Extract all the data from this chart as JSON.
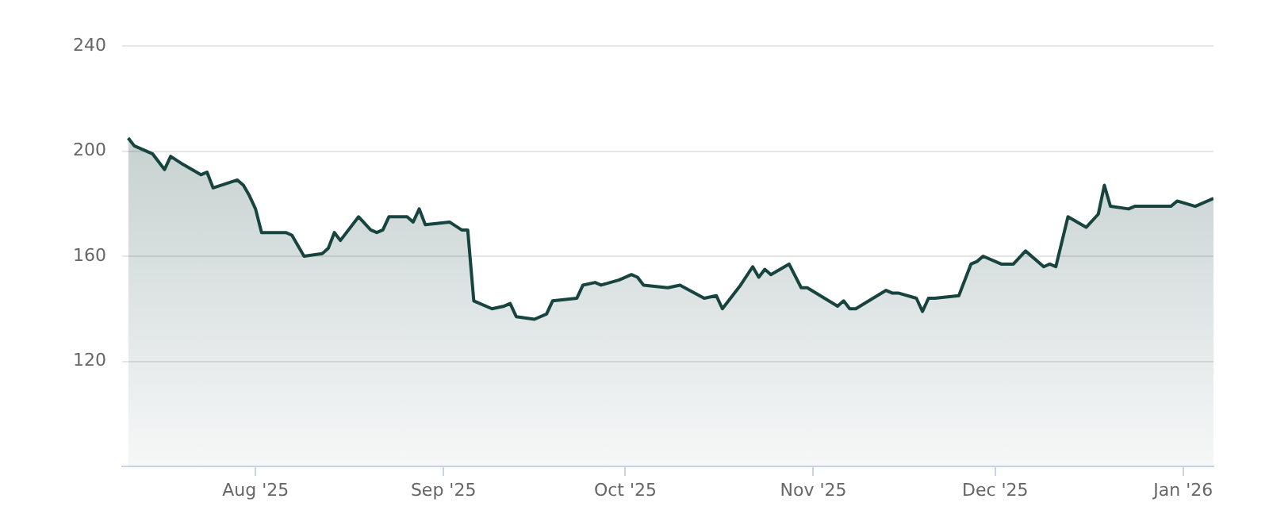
{
  "chart_data": {
    "type": "area",
    "x": [
      "2025-07-11",
      "2025-07-12",
      "2025-07-15",
      "2025-07-16",
      "2025-07-17",
      "2025-07-18",
      "2025-07-20",
      "2025-07-23",
      "2025-07-24",
      "2025-07-25",
      "2025-07-29",
      "2025-07-30",
      "2025-07-31",
      "2025-08-01",
      "2025-08-02",
      "2025-08-05",
      "2025-08-06",
      "2025-08-07",
      "2025-08-08",
      "2025-08-09",
      "2025-08-12",
      "2025-08-13",
      "2025-08-14",
      "2025-08-15",
      "2025-08-18",
      "2025-08-20",
      "2025-08-21",
      "2025-08-22",
      "2025-08-23",
      "2025-08-26",
      "2025-08-27",
      "2025-08-28",
      "2025-08-29",
      "2025-09-02",
      "2025-09-04",
      "2025-09-05",
      "2025-09-06",
      "2025-09-09",
      "2025-09-11",
      "2025-09-12",
      "2025-09-13",
      "2025-09-16",
      "2025-09-18",
      "2025-09-19",
      "2025-09-23",
      "2025-09-24",
      "2025-09-26",
      "2025-09-27",
      "2025-09-30",
      "2025-10-02",
      "2025-10-03",
      "2025-10-04",
      "2025-10-08",
      "2025-10-10",
      "2025-10-14",
      "2025-10-16",
      "2025-10-17",
      "2025-10-20",
      "2025-10-22",
      "2025-10-23",
      "2025-10-24",
      "2025-10-25",
      "2025-10-28",
      "2025-10-30",
      "2025-10-31",
      "2025-11-05",
      "2025-11-06",
      "2025-11-07",
      "2025-11-08",
      "2025-11-13",
      "2025-11-14",
      "2025-11-15",
      "2025-11-18",
      "2025-11-19",
      "2025-11-20",
      "2025-11-21",
      "2025-11-25",
      "2025-11-27",
      "2025-11-28",
      "2025-11-29",
      "2025-12-02",
      "2025-12-04",
      "2025-12-06",
      "2025-12-09",
      "2025-12-10",
      "2025-12-11",
      "2025-12-13",
      "2025-12-16",
      "2025-12-18",
      "2025-12-19",
      "2025-12-20",
      "2025-12-23",
      "2025-12-24",
      "2025-12-30",
      "2025-12-31",
      "2026-01-03",
      "2026-01-06"
    ],
    "series": [
      {
        "color": "#17443f",
        "values": [
          205,
          202,
          199,
          196,
          193,
          198,
          195,
          191,
          192,
          186,
          189,
          187,
          183,
          178,
          169,
          169,
          169,
          168,
          164,
          160,
          161,
          163,
          169,
          166,
          175,
          170,
          169,
          170,
          175,
          175,
          173,
          178,
          172,
          173,
          170,
          170,
          143,
          140,
          141,
          142,
          137,
          136,
          138,
          143,
          144,
          149,
          150,
          149,
          151,
          153,
          152,
          149,
          148,
          149,
          144,
          145,
          140,
          149,
          156,
          152,
          155,
          153,
          157,
          148,
          148,
          141,
          143,
          140,
          140,
          147,
          146,
          146,
          144,
          139,
          144,
          144,
          145,
          157,
          158,
          160,
          157,
          157,
          162,
          156,
          157,
          156,
          175,
          171,
          176,
          187,
          179,
          178,
          179,
          179,
          181,
          179,
          182
        ]
      }
    ],
    "xlim": [
      "2025-07-10",
      "2026-01-06"
    ],
    "xticks": [
      {
        "value": "2025-08-01",
        "label": "Aug '25"
      },
      {
        "value": "2025-09-01",
        "label": "Sep '25"
      },
      {
        "value": "2025-10-01",
        "label": "Oct '25"
      },
      {
        "value": "2025-11-01",
        "label": "Nov '25"
      },
      {
        "value": "2025-12-01",
        "label": "Dec '25"
      },
      {
        "value": "2026-01-01",
        "label": "Jan '26"
      }
    ],
    "ylim": [
      80,
      240
    ],
    "yticks": [
      120,
      160,
      200,
      240
    ],
    "grid": "y",
    "legend": false,
    "marker": "none",
    "line_style": "solid"
  }
}
